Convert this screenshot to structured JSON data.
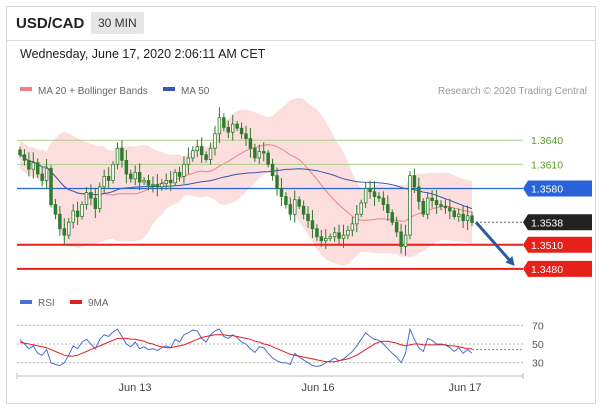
{
  "header": {
    "symbol": "USD/CAD",
    "timeframe": "30 MIN"
  },
  "datetime": "Wednesday, June 17, 2020 2:06:11 AM CET",
  "legend": {
    "bb_label": "MA 20 + Bollinger Bands",
    "ma50_label": "MA 50",
    "research": "Research © 2020 Trading Central",
    "rsi_label": "RSI",
    "ma9_label": "9MA"
  },
  "colors": {
    "candle": "#2f7a2f",
    "bollinger_fill": "#fbd3d3",
    "ma20": "#f08080",
    "ma50": "#3a55b0",
    "resistance": "#a8d08a",
    "resistance_text": "#5a9e2a",
    "pivot": "#2962d9",
    "support": "#e8201a",
    "last_price_bg": "#222222",
    "rsi": "#4a6fd4",
    "rsi_ma": "#e02020",
    "arrow": "#2c5aa0"
  },
  "chart_data": [
    {
      "type": "candlestick",
      "title": "USD/CAD 30 MIN",
      "x_ticks": [
        "Jun 13",
        "Jun 16",
        "Jun 17"
      ],
      "ylim": [
        1.346,
        1.369
      ],
      "levels": [
        {
          "value": 1.364,
          "label": "1.3640",
          "kind": "resistance"
        },
        {
          "value": 1.361,
          "label": "1.3610",
          "kind": "resistance"
        },
        {
          "value": 1.358,
          "label": "1.3580",
          "kind": "pivot"
        },
        {
          "value": 1.3538,
          "label": "1.3538",
          "kind": "last"
        },
        {
          "value": 1.351,
          "label": "1.3510",
          "kind": "support"
        },
        {
          "value": 1.348,
          "label": "1.3480",
          "kind": "support"
        }
      ],
      "close": [
        1.3622,
        1.3615,
        1.3604,
        1.3612,
        1.3598,
        1.359,
        1.3605,
        1.356,
        1.3548,
        1.353,
        1.3522,
        1.3538,
        1.3552,
        1.3545,
        1.356,
        1.3575,
        1.3568,
        1.3555,
        1.3582,
        1.3595,
        1.359,
        1.361,
        1.363,
        1.3615,
        1.3598,
        1.3592,
        1.36,
        1.3588,
        1.359,
        1.3584,
        1.3585,
        1.3582,
        1.3586,
        1.359,
        1.3587,
        1.36,
        1.3595,
        1.361,
        1.3618,
        1.3627,
        1.3632,
        1.3622,
        1.3616,
        1.363,
        1.3648,
        1.3668,
        1.3656,
        1.365,
        1.366,
        1.3655,
        1.3648,
        1.3642,
        1.363,
        1.3618,
        1.3626,
        1.3624,
        1.361,
        1.3596,
        1.358,
        1.357,
        1.356,
        1.3548,
        1.3566,
        1.3558,
        1.3548,
        1.354,
        1.353,
        1.352,
        1.3515,
        1.3518,
        1.352,
        1.3525,
        1.3518,
        1.3522,
        1.3528,
        1.3536,
        1.3548,
        1.3562,
        1.358,
        1.3576,
        1.357,
        1.3568,
        1.356,
        1.355,
        1.3538,
        1.3526,
        1.3508,
        1.3522,
        1.3596,
        1.3582,
        1.3564,
        1.3548,
        1.3568,
        1.3565,
        1.356,
        1.3558,
        1.3556,
        1.3552,
        1.3545,
        1.3548,
        1.354,
        1.3546,
        1.3538
      ]
    },
    {
      "type": "line",
      "title": "RSI",
      "ylim": [
        20,
        80
      ],
      "y_ticks": [
        30,
        50,
        70
      ],
      "series": [
        {
          "name": "RSI",
          "values": [
            55,
            50,
            45,
            48,
            40,
            38,
            44,
            30,
            28,
            27,
            30,
            38,
            48,
            45,
            52,
            55,
            50,
            45,
            55,
            60,
            58,
            63,
            66,
            58,
            50,
            47,
            52,
            45,
            47,
            44,
            45,
            43,
            46,
            48,
            46,
            55,
            52,
            60,
            62,
            65,
            64,
            56,
            52,
            60,
            64,
            66,
            58,
            56,
            60,
            57,
            52,
            50,
            45,
            41,
            47,
            46,
            40,
            35,
            32,
            30,
            30,
            28,
            40,
            36,
            33,
            30,
            27,
            26,
            27,
            30,
            32,
            35,
            32,
            34,
            38,
            42,
            48,
            55,
            62,
            58,
            55,
            54,
            50,
            45,
            40,
            36,
            30,
            40,
            66,
            55,
            46,
            42,
            56,
            54,
            50,
            50,
            49,
            46,
            42,
            46,
            40,
            44,
            40
          ]
        },
        {
          "name": "9MA",
          "values": [
            52,
            51,
            50,
            49,
            48,
            47,
            46,
            44,
            42,
            40,
            38,
            37,
            37,
            38,
            40,
            42,
            44,
            46,
            48,
            50,
            52,
            54,
            56,
            56,
            56,
            55,
            55,
            54,
            53,
            51,
            50,
            48,
            47,
            46,
            46,
            47,
            48,
            49,
            51,
            53,
            55,
            57,
            58,
            59,
            60,
            60,
            60,
            59,
            59,
            58,
            57,
            56,
            55,
            53,
            52,
            50,
            49,
            47,
            45,
            43,
            41,
            39,
            38,
            37,
            36,
            35,
            34,
            33,
            32,
            31,
            31,
            31,
            32,
            33,
            34,
            36,
            38,
            41,
            44,
            47,
            50,
            52,
            53,
            53,
            52,
            51,
            49,
            48,
            49,
            50,
            50,
            49,
            49,
            49,
            49,
            49,
            49,
            48,
            48,
            47,
            46,
            45,
            45
          ]
        }
      ]
    }
  ]
}
